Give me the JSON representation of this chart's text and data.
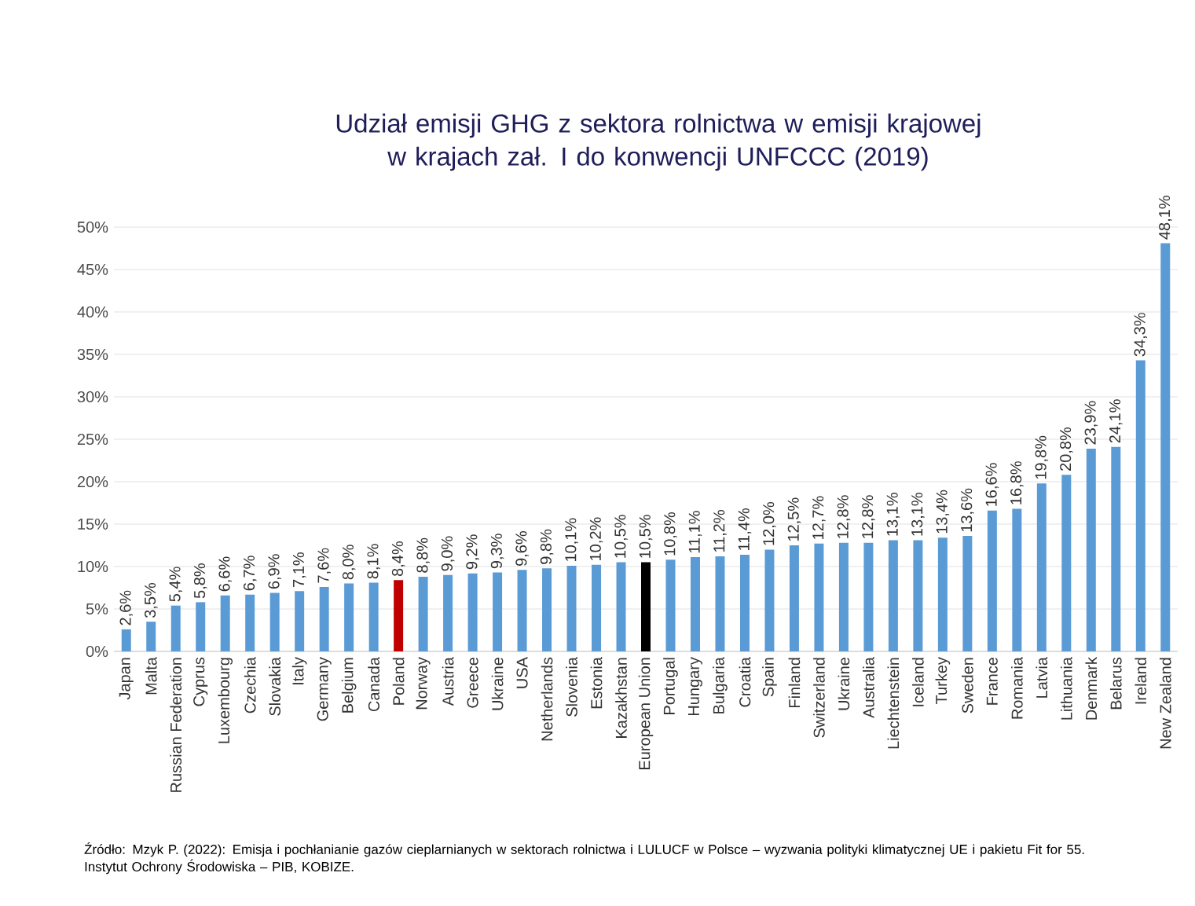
{
  "chart_data": {
    "type": "bar",
    "title": "Udział emisji GHG z sektora rolnictwa w emisji krajowej w krajach zał. I do konwencji UNFCCC (2019)",
    "categories": [
      "Japan",
      "Malta",
      "Russian Federation",
      "Cyprus",
      "Luxembourg",
      "Czechia",
      "Slovakia",
      "Italy",
      "Germany",
      "Belgium",
      "Canada",
      "Poland",
      "Norway",
      "Austria",
      "Greece",
      "Ukraine",
      "USA",
      "Netherlands",
      "Slovenia",
      "Estonia",
      "Kazakhstan",
      "European Union",
      "Portugal",
      "Hungary",
      "Bulgaria",
      "Croatia",
      "Spain",
      "Finland",
      "Switzerland",
      "Ukraine",
      "Australia",
      "Liechtenstein",
      "Iceland",
      "Turkey",
      "Sweden",
      "France",
      "Romania",
      "Latvia",
      "Lithuania",
      "Denmark",
      "Belarus",
      "Ireland",
      "New Zealand"
    ],
    "values": [
      2.6,
      3.5,
      5.4,
      5.8,
      6.6,
      6.7,
      6.9,
      7.1,
      7.6,
      8.0,
      8.1,
      8.4,
      8.8,
      9.0,
      9.2,
      9.3,
      9.6,
      9.8,
      10.1,
      10.2,
      10.5,
      10.5,
      10.8,
      11.1,
      11.2,
      11.4,
      12.0,
      12.5,
      12.7,
      12.8,
      12.8,
      13.1,
      13.1,
      13.4,
      13.6,
      16.6,
      16.8,
      19.8,
      20.8,
      23.9,
      24.1,
      34.3,
      48.1
    ],
    "value_labels": [
      "2,6%",
      "3,5%",
      "5,4%",
      "5,8%",
      "6,6%",
      "6,7%",
      "6,9%",
      "7,1%",
      "7,6%",
      "8,0%",
      "8,1%",
      "8,4%",
      "8,8%",
      "9,0%",
      "9,2%",
      "9,3%",
      "9,6%",
      "9,8%",
      "10,1%",
      "10,2%",
      "10,5%",
      "10,5%",
      "10,8%",
      "11,1%",
      "11,2%",
      "11,4%",
      "12,0%",
      "12,5%",
      "12,7%",
      "12,8%",
      "12,8%",
      "13,1%",
      "13,1%",
      "13,4%",
      "13,6%",
      "16,6%",
      "16,8%",
      "19,8%",
      "20,8%",
      "23,9%",
      "24,1%",
      "34,3%",
      "48,1%"
    ],
    "colors": [
      "#5b9bd5",
      "#5b9bd5",
      "#5b9bd5",
      "#5b9bd5",
      "#5b9bd5",
      "#5b9bd5",
      "#5b9bd5",
      "#5b9bd5",
      "#5b9bd5",
      "#5b9bd5",
      "#5b9bd5",
      "#c00000",
      "#5b9bd5",
      "#5b9bd5",
      "#5b9bd5",
      "#5b9bd5",
      "#5b9bd5",
      "#5b9bd5",
      "#5b9bd5",
      "#5b9bd5",
      "#5b9bd5",
      "#000000",
      "#5b9bd5",
      "#5b9bd5",
      "#5b9bd5",
      "#5b9bd5",
      "#5b9bd5",
      "#5b9bd5",
      "#5b9bd5",
      "#5b9bd5",
      "#5b9bd5",
      "#5b9bd5",
      "#5b9bd5",
      "#5b9bd5",
      "#5b9bd5",
      "#5b9bd5",
      "#5b9bd5",
      "#5b9bd5",
      "#5b9bd5",
      "#5b9bd5",
      "#5b9bd5",
      "#5b9bd5",
      "#5b9bd5"
    ],
    "ylim": [
      0,
      50
    ],
    "yticks": [
      {
        "value": 0,
        "label": "0%"
      },
      {
        "value": 5,
        "label": "5%"
      },
      {
        "value": 10,
        "label": "10%"
      },
      {
        "value": 15,
        "label": "15%"
      },
      {
        "value": 20,
        "label": "20%"
      },
      {
        "value": 25,
        "label": "25%"
      },
      {
        "value": 30,
        "label": "30%"
      },
      {
        "value": 35,
        "label": "35%"
      },
      {
        "value": 40,
        "label": "40%"
      },
      {
        "value": 45,
        "label": "45%"
      },
      {
        "value": 50,
        "label": "50%"
      }
    ],
    "grid": "y",
    "annotations": [
      "Źródło: Mzyk P. (2022): Emisja i pochłanianie gazów cieplarnianych w sektorach rolnictwa i LULUCF w Polsce – wyzwania polityki klimatycznej UE i pakietu Fit for 55. Instytut Ochrony Środowiska – PIB, KOBIZE."
    ]
  }
}
